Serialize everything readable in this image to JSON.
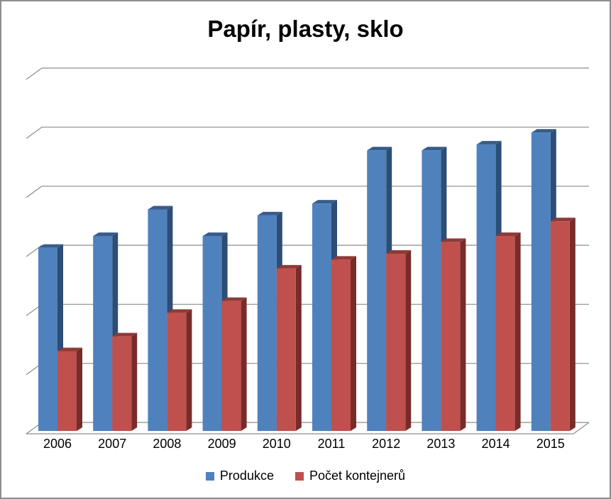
{
  "chart_data": {
    "type": "bar",
    "title": "Papír, plasty, sklo",
    "categories": [
      "2006",
      "2007",
      "2008",
      "2009",
      "2010",
      "2011",
      "2012",
      "2013",
      "2014",
      "2015"
    ],
    "series": [
      {
        "name": "Produkce",
        "color": "#4f81bd",
        "values": [
          3.1,
          3.3,
          3.75,
          3.3,
          3.65,
          3.85,
          4.75,
          4.75,
          4.85,
          5.05
        ]
      },
      {
        "name": "Počet kontejnerů",
        "color": "#c0504d",
        "values": [
          1.35,
          1.6,
          2.0,
          2.2,
          2.75,
          2.9,
          3.0,
          3.2,
          3.3,
          3.55
        ]
      }
    ],
    "ylim": [
      0,
      6
    ],
    "grid": true,
    "legend_position": "bottom",
    "style": "3d-clustered-column"
  }
}
